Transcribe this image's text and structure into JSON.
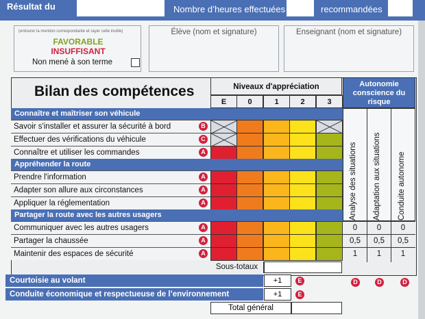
{
  "header": {
    "result_label": "Résultat du",
    "hours_done_label": "Nombre d’heures effectuées",
    "recommended_label": "recommandées"
  },
  "mention": {
    "instruction": "(entourer la mention correspondante et rayer celle inutile)",
    "favorable": "FAVORABLE",
    "insuffisant": "INSUFFISANT",
    "not_completed": "Non mené à son terme"
  },
  "signatures": {
    "student": "Élève (nom et signature)",
    "teacher": "Enseignant (nom et signature)"
  },
  "bilan": {
    "title": "Bilan des compétences",
    "levels_title": "Niveaux d'appréciation",
    "level_cols": [
      "E",
      "0",
      "1",
      "2",
      "3"
    ],
    "autonomy_title": "Autonomie conscience du risque",
    "autonomy_cols": [
      "Analyse des situations",
      "Adaptation aux situations",
      "Conduite autonome"
    ],
    "sections": [
      {
        "title": "Connaître et maîtriser son véhicule",
        "items": [
          {
            "label": "Savoir s'installer et assurer la sécurité à bord",
            "badge": "B"
          },
          {
            "label": "Effectuer des vérifications du véhicule",
            "badge": "C"
          },
          {
            "label": "Connaître et utiliser les commandes",
            "badge": "A"
          }
        ]
      },
      {
        "title": "Appréhender la route",
        "items": [
          {
            "label": "Prendre l'information",
            "badge": "A"
          },
          {
            "label": "Adapter son allure aux circonstances",
            "badge": "A"
          },
          {
            "label": "Appliquer la réglementation",
            "badge": "A"
          }
        ]
      },
      {
        "title": "Partager la route avec les autres usagers",
        "items": [
          {
            "label": "Communiquer avec les autres usagers",
            "badge": "A"
          },
          {
            "label": "Partager la chaussée",
            "badge": "A"
          },
          {
            "label": "Maintenir des espaces de sécurité",
            "badge": "A"
          }
        ]
      }
    ],
    "autonomy_scores": [
      [
        "0",
        "0",
        "0"
      ],
      [
        "0,5",
        "0,5",
        "0,5"
      ],
      [
        "1",
        "1",
        "1"
      ]
    ],
    "subtotal_label": "Sous-totaux",
    "courtesy_label": "Courtoisie au volant",
    "eco_label": "Conduite économique et respectueuse de l’environnement",
    "bonus": "+1",
    "bonus_badge": "E",
    "autonomy_badge": "D",
    "total_label": "Total général"
  },
  "colors": {
    "header_blue": "#4a6fb4",
    "badge_red": "#d0213f",
    "level_E": "#e01f30",
    "level_0": "#f07b1d",
    "level_1": "#fbb61b",
    "level_2": "#fbe21b",
    "level_3": "#a6b51a"
  }
}
